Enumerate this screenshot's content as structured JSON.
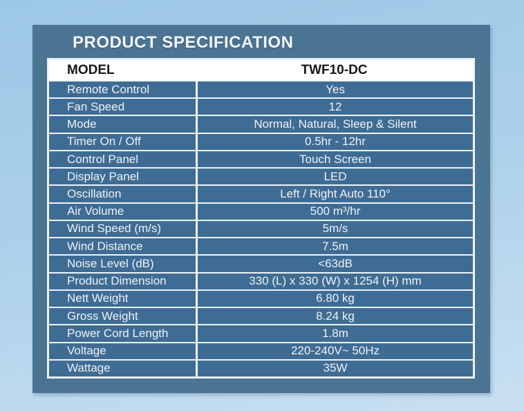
{
  "page": {
    "title": "PRODUCT SPECIFICATION"
  },
  "table": {
    "header": {
      "label": "MODEL",
      "value": "TWF10-DC"
    },
    "rows": [
      {
        "label": "Remote Control",
        "value": "Yes"
      },
      {
        "label": "Fan Speed",
        "value": "12"
      },
      {
        "label": "Mode",
        "value": "Normal, Natural, Sleep & Silent"
      },
      {
        "label": "Timer On / Off",
        "value": "0.5hr - 12hr"
      },
      {
        "label": "Control Panel",
        "value": "Touch Screen"
      },
      {
        "label": "Display Panel",
        "value": "LED"
      },
      {
        "label": "Oscillation",
        "value": "Left / Right Auto 110°"
      },
      {
        "label": "Air Volume",
        "value": "500 m³/hr"
      },
      {
        "label": "Wind Speed (m/s)",
        "value": "5m/s"
      },
      {
        "label": "Wind Distance",
        "value": "7.5m"
      },
      {
        "label": "Noise Level (dB)",
        "value": "<63dB"
      },
      {
        "label": "Product Dimension",
        "value": "330 (L) x 330 (W) x 1254 (H) mm"
      },
      {
        "label": "Nett Weight",
        "value": "6.80 kg"
      },
      {
        "label": "Gross Weight",
        "value": "8.24 kg"
      },
      {
        "label": "Power Cord Length",
        "value": "1.8m"
      },
      {
        "label": "Voltage",
        "value": "220-240V~ 50Hz"
      },
      {
        "label": "Wattage",
        "value": "35W"
      }
    ]
  },
  "colors": {
    "panel": "#4b7392",
    "cell": "#3f6c94",
    "divider": "#eef4f8",
    "header_background": "#ffffff",
    "header_text": "#161616",
    "body_text": "#eef3f7",
    "background_top": "#9cc7e6",
    "background_bottom": "#c9dff1"
  }
}
